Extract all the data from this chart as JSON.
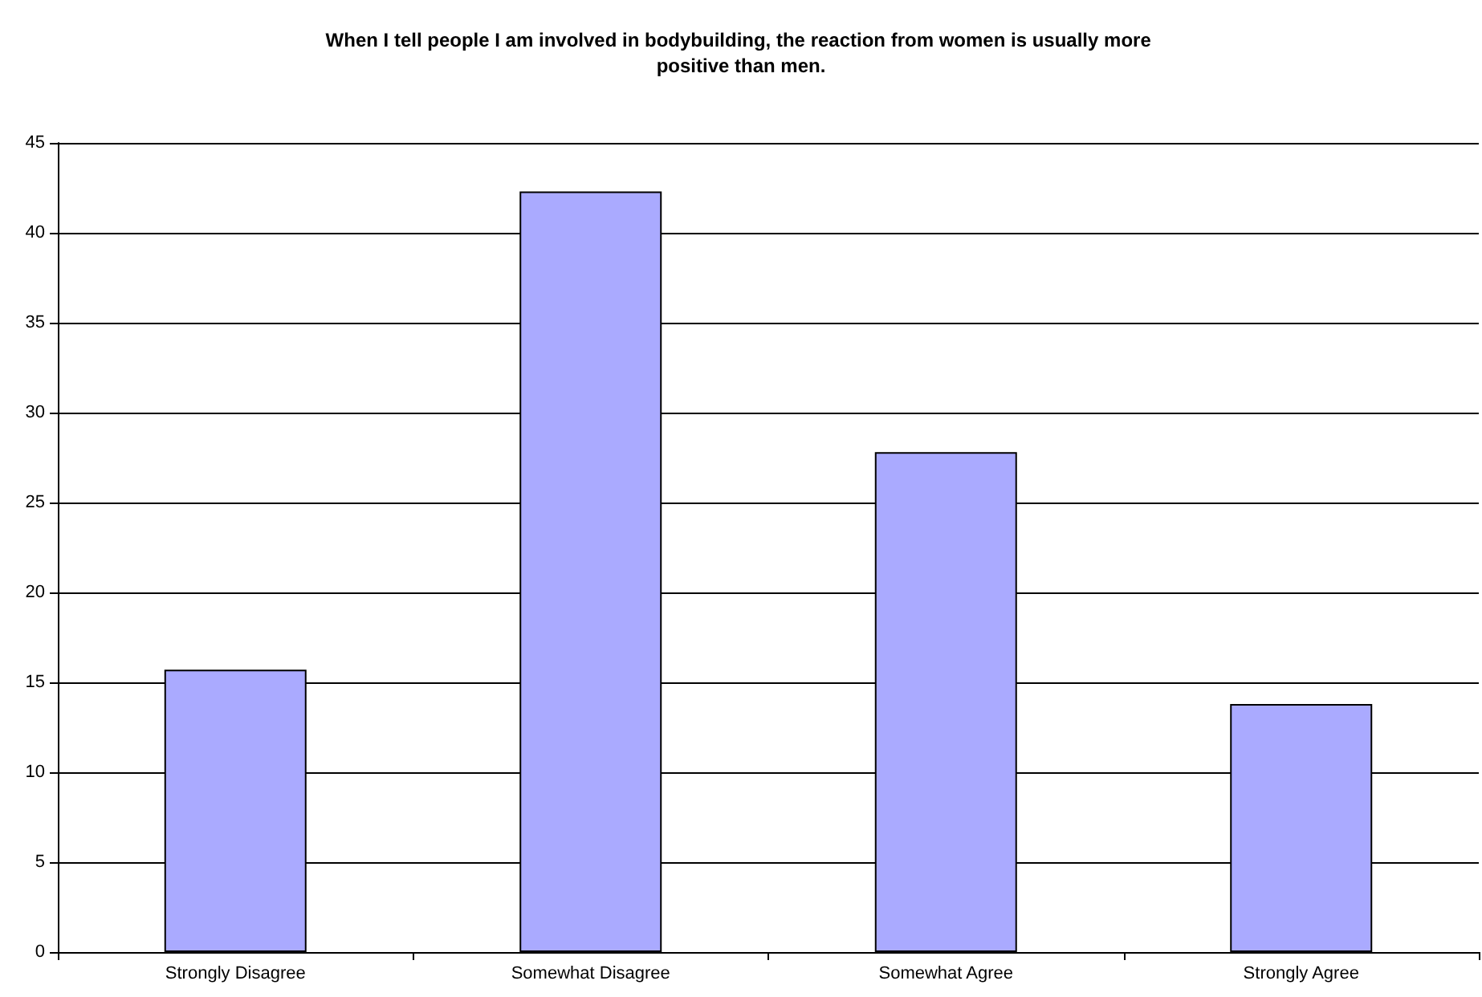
{
  "chart_data": {
    "type": "bar",
    "title": "When I tell people I am involved in bodybuilding, the reaction from women is usually more positive than men.",
    "categories": [
      "Strongly Disagree",
      "Somewhat Disagree",
      "Somewhat Agree",
      "Strongly Agree"
    ],
    "values": [
      15.7,
      42.3,
      27.8,
      13.8
    ],
    "color": "#aaaaff",
    "ylim": [
      0,
      45
    ],
    "yticks": [
      0,
      5,
      10,
      15,
      20,
      25,
      30,
      35,
      40,
      45
    ],
    "grid": "y"
  }
}
